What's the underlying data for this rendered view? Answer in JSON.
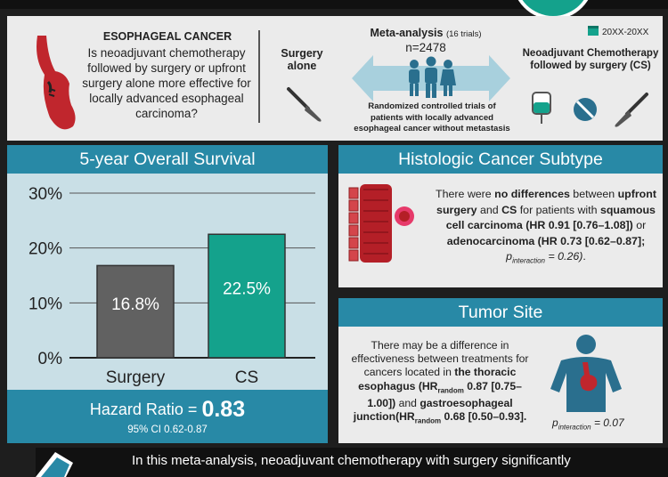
{
  "header": {
    "question_title": "ESOPHAGEAL CANCER",
    "question_text": "Is neoadjuvant chemotherapy followed by surgery or upfront surgery alone more effective for locally advanced esophageal carcinoma?",
    "surgery_alone_label": "Surgery alone",
    "meta_title_bold": "Meta-analysis",
    "meta_title_trials": "(16 trials)",
    "meta_n": "n=2478",
    "rct_text": "Randomized controlled trials of patients with locally advanced esophageal cancer without metastasis",
    "date_range": "20XX-20XX",
    "cs_label": "Neoadjuvant Chemotherapy followed by surgery (CS)"
  },
  "survival": {
    "title": "5-year Overall Survival",
    "hazard_label": "Hazard Ratio =",
    "hazard_value": "0.83",
    "ci": "95% CI 0.62-0.87"
  },
  "chart_data": {
    "type": "bar",
    "categories": [
      "Surgery",
      "CS"
    ],
    "values": [
      16.8,
      22.5
    ],
    "value_labels": [
      "16.8%",
      "22.5%"
    ],
    "ylim": [
      0,
      30
    ],
    "yticks": [
      "0%",
      "10%",
      "20%",
      "30%"
    ],
    "colors": [
      "#616161",
      "#14a28c"
    ],
    "grid": true
  },
  "histologic": {
    "title": "Histologic Cancer Subtype",
    "t1": "There were ",
    "b1": "no differences",
    "t2": " between ",
    "b2": "upfront surgery",
    "t3": " and ",
    "b3": "CS",
    "t4": " for patients with ",
    "b4": "squamous cell carcinoma (HR 0.91 [0.76–1.08])",
    "t5": " or ",
    "b5": "adenocarcinoma (HR 0.73 [0.62–0.87]; ",
    "p": "p",
    "p_sub": "interaction",
    "p_val": " = 0.26)",
    "end": "."
  },
  "tumor": {
    "title": "Tumor Site",
    "t1": "There may be a difference in effectiveness between treatments for cancers located in ",
    "b1": "the thoracic esophagus (HR",
    "sub1": "random",
    "b2": " 0.87 [0.75–1.00])",
    "t2": " and ",
    "b3": "gastroesophageal junction(HR",
    "sub2": "random",
    "b4": " 0.68 [0.50–0.93].",
    "p": "p",
    "p_sub": "interaction",
    "p_val": " = 0.07"
  },
  "conclusion": {
    "text": "In this meta-analysis, neoadjuvant chemotherapy with surgery significantly"
  },
  "colors": {
    "teal": "#14a28c",
    "blue": "#2889a6",
    "gray_bar": "#616161",
    "red": "#c0262d"
  }
}
